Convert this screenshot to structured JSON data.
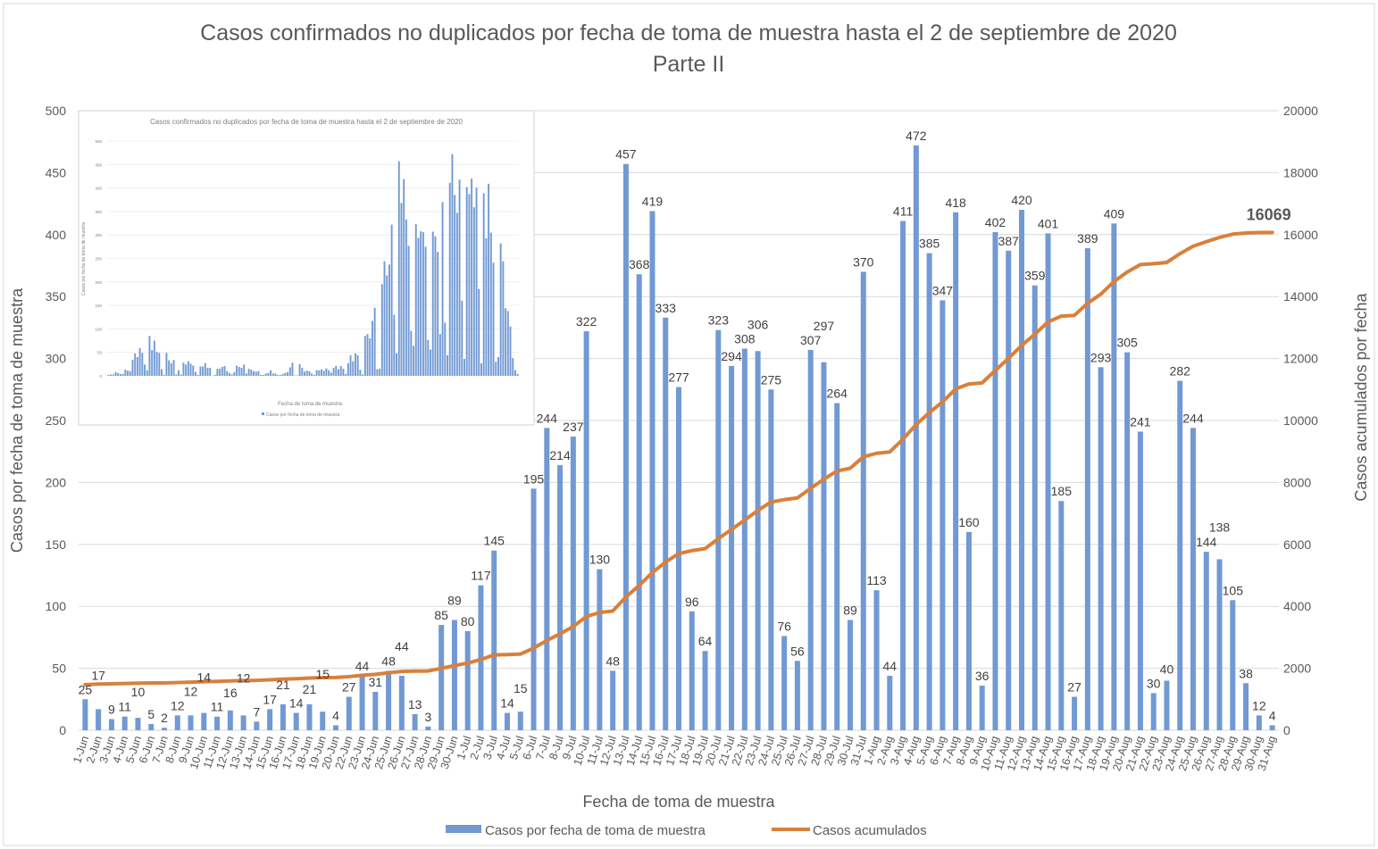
{
  "chart_data": {
    "type": "bar+line",
    "title": "Casos confirmados no duplicados por fecha de toma de muestra hasta el 2 de septiembre de 2020",
    "subtitle": "Parte II",
    "xlabel": "Fecha de toma de muestra",
    "ylabel": "Casos por fecha de toma de muestra",
    "y2label": "Casos acumulados por fecha",
    "ylim": [
      0,
      500
    ],
    "yticks": [
      0,
      50,
      100,
      150,
      200,
      250,
      300,
      350,
      400,
      450,
      500
    ],
    "y2lim": [
      0,
      20000
    ],
    "y2ticks": [
      0,
      2000,
      4000,
      6000,
      8000,
      10000,
      12000,
      14000,
      16000,
      18000,
      20000
    ],
    "grid": true,
    "legend_position": "bottom",
    "colors": {
      "bars": "#7199d4",
      "line": "#d8803c",
      "grid": "#d9d9d9",
      "text": "#595959"
    },
    "categories": [
      "1-Jun",
      "2-Jun",
      "3-Jun",
      "4-Jun",
      "5-Jun",
      "6-Jun",
      "7-Jun",
      "8-Jun",
      "9-Jun",
      "10-Jun",
      "11-Jun",
      "12-Jun",
      "13-Jun",
      "14-Jun",
      "15-Jun",
      "16-Jun",
      "17-Jun",
      "18-Jun",
      "19-Jun",
      "20-Jun",
      "22-Jun",
      "23-Jun",
      "24-Jun",
      "25-Jun",
      "26-Jun",
      "27-Jun",
      "28-Jun",
      "29-Jun",
      "30-Jun",
      "1-Jul",
      "2-Jul",
      "3-Jul",
      "4-Jul",
      "5-Jul",
      "6-Jul",
      "7-Jul",
      "8-Jul",
      "9-Jul",
      "10-Jul",
      "11-Jul",
      "12-Jul",
      "13-Jul",
      "14-Jul",
      "15-Jul",
      "16-Jul",
      "17-Jul",
      "18-Jul",
      "19-Jul",
      "20-Jul",
      "21-Jul",
      "22-Jul",
      "23-Jul",
      "24-Jul",
      "25-Jul",
      "26-Jul",
      "27-Jul",
      "28-Jul",
      "29-Jul",
      "30-Jul",
      "31-Jul",
      "1-Aug",
      "2-Aug",
      "3-Aug",
      "4-Aug",
      "5-Aug",
      "6-Aug",
      "7-Aug",
      "8-Aug",
      "9-Aug",
      "10-Aug",
      "11-Aug",
      "12-Aug",
      "13-Aug",
      "14-Aug",
      "15-Aug",
      "16-Aug",
      "17-Aug",
      "18-Aug",
      "19-Aug",
      "20-Aug",
      "21-Aug",
      "22-Aug",
      "23-Aug",
      "24-Aug",
      "25-Aug",
      "26-Aug",
      "27-Aug",
      "28-Aug",
      "29-Aug",
      "30-Aug",
      "31-Aug"
    ],
    "series": [
      {
        "name": "Casos por fecha de toma de muestra",
        "type": "bar",
        "axis": "left",
        "values": [
          25,
          17,
          9,
          11,
          10,
          5,
          2,
          12,
          12,
          14,
          11,
          16,
          12,
          7,
          17,
          21,
          14,
          21,
          15,
          4,
          27,
          44,
          31,
          48,
          44,
          13,
          3,
          85,
          89,
          80,
          117,
          145,
          14,
          15,
          195,
          244,
          214,
          237,
          322,
          130,
          48,
          457,
          368,
          419,
          333,
          277,
          96,
          64,
          323,
          294,
          308,
          306,
          275,
          76,
          56,
          307,
          297,
          264,
          89,
          370,
          113,
          44,
          411,
          472,
          385,
          347,
          418,
          160,
          36,
          402,
          387,
          420,
          359,
          401,
          185,
          27,
          389,
          293,
          409,
          305,
          241,
          30,
          40,
          282,
          244,
          144,
          138,
          105,
          38,
          12,
          4
        ]
      },
      {
        "name": "Casos acumulados",
        "type": "line",
        "axis": "right",
        "values": [
          1474,
          1491,
          1500,
          1511,
          1521,
          1526,
          1528,
          1540,
          1552,
          1566,
          1577,
          1593,
          1605,
          1612,
          1629,
          1650,
          1664,
          1685,
          1700,
          1704,
          1731,
          1775,
          1806,
          1854,
          1898,
          1911,
          1914,
          1999,
          2088,
          2168,
          2285,
          2430,
          2444,
          2459,
          2654,
          2898,
          3112,
          3349,
          3671,
          3801,
          3849,
          4306,
          4674,
          5093,
          5426,
          5703,
          5799,
          5863,
          6186,
          6480,
          6788,
          7094,
          7369,
          7445,
          7501,
          7808,
          8105,
          8369,
          8458,
          8828,
          8941,
          8985,
          9396,
          9868,
          10253,
          10600,
          11018,
          11178,
          11214,
          11616,
          12003,
          12423,
          12782,
          13183,
          13368,
          13395,
          13784,
          14077,
          14486,
          14791,
          15032,
          15062,
          15102,
          15384,
          15628,
          15772,
          15910,
          16015,
          16053,
          16065,
          16069
        ],
        "last_label": "16069"
      }
    ],
    "inset": {
      "title": "Casos confirmados no duplicados por fecha de toma de muestra hasta el 2 de septiembre de 2020",
      "xlabel": "Fecha de toma de muestra",
      "ylabel": "Casos por fecha de toma de muestra",
      "legend": "Casos por fecha de toma de muestra",
      "yticks": [
        0,
        50,
        100,
        150,
        200,
        250,
        300,
        350,
        400,
        450,
        500
      ],
      "earlier_values": [
        2,
        3,
        3,
        8,
        6,
        4,
        4,
        13,
        11,
        10,
        34,
        48,
        40,
        59,
        49,
        24,
        12,
        85,
        55,
        75,
        51,
        49,
        14,
        2,
        49,
        33,
        27,
        34,
        3,
        12,
        3,
        28,
        24,
        31,
        26,
        22,
        8,
        2,
        20,
        20,
        27,
        17,
        17,
        0,
        2,
        15,
        15,
        19,
        21,
        10,
        6,
        3,
        8,
        22,
        19,
        17,
        24,
        5,
        15,
        13,
        10,
        9,
        10,
        2,
        2,
        5,
        6,
        12,
        5,
        5,
        2,
        2,
        4,
        6,
        8,
        18,
        28,
        1,
        1
      ]
    }
  }
}
